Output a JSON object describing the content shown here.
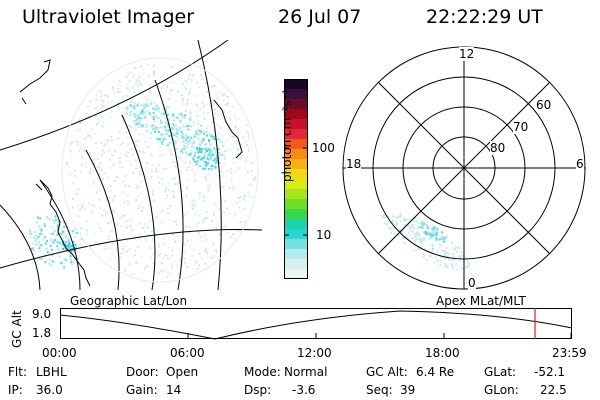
{
  "header": {
    "instrument": "Ultraviolet Imager",
    "date": "26 Jul 07",
    "time": "22:22:29 UT"
  },
  "colorbar": {
    "unit_label": "photon cm⁻²s⁻¹",
    "ticks": [
      "100",
      "10"
    ],
    "colors_top_to_bottom": [
      "#140826",
      "#3a0f3a",
      "#6c0a2a",
      "#9a0a1a",
      "#c8102a",
      "#e3263a",
      "#f25a1a",
      "#f78a18",
      "#f6b014",
      "#f0dc12",
      "#d8ec14",
      "#a8e61a",
      "#6ee026",
      "#34d848",
      "#1ad2a6",
      "#28d4d4",
      "#78e0e0",
      "#b4ecec",
      "#d8f0f0",
      "#eaf4f4"
    ]
  },
  "left_map": {
    "label": "Geographic Lat/Lon",
    "ocean_color": "#ffffff",
    "aurora_color": "#4fd8e0"
  },
  "polar_plot": {
    "label": "Apex MLat/MLT",
    "mlt_labels": [
      "12",
      "18",
      "6",
      "0"
    ],
    "lat_labels": [
      "60",
      "70",
      "80"
    ]
  },
  "altitude_strip": {
    "ylabel": "GC Alt",
    "y_ticks": [
      "9.0",
      "1.8"
    ],
    "time_ticks": [
      "00:00",
      "06:00",
      "12:00",
      "18:00",
      "23:59"
    ],
    "current_time_marker_color": "#d81b2a"
  },
  "status": {
    "row1": [
      {
        "label": "Flt:",
        "value": "LBHL"
      },
      {
        "label": "Door:",
        "value": "Open"
      },
      {
        "label": "Mode:",
        "value": "Normal"
      },
      {
        "label": "GC Alt:",
        "value": "6.4 Re"
      },
      {
        "label": "GLat:",
        "value": "-52.1"
      }
    ],
    "row2": [
      {
        "label": "IP:",
        "value": "36.0"
      },
      {
        "label": "Gain:",
        "value": "14"
      },
      {
        "label": "Dsp:",
        "value": "-3.6"
      },
      {
        "label": "Seq:",
        "value": "39"
      },
      {
        "label": "GLon:",
        "value": "22.5"
      }
    ]
  }
}
